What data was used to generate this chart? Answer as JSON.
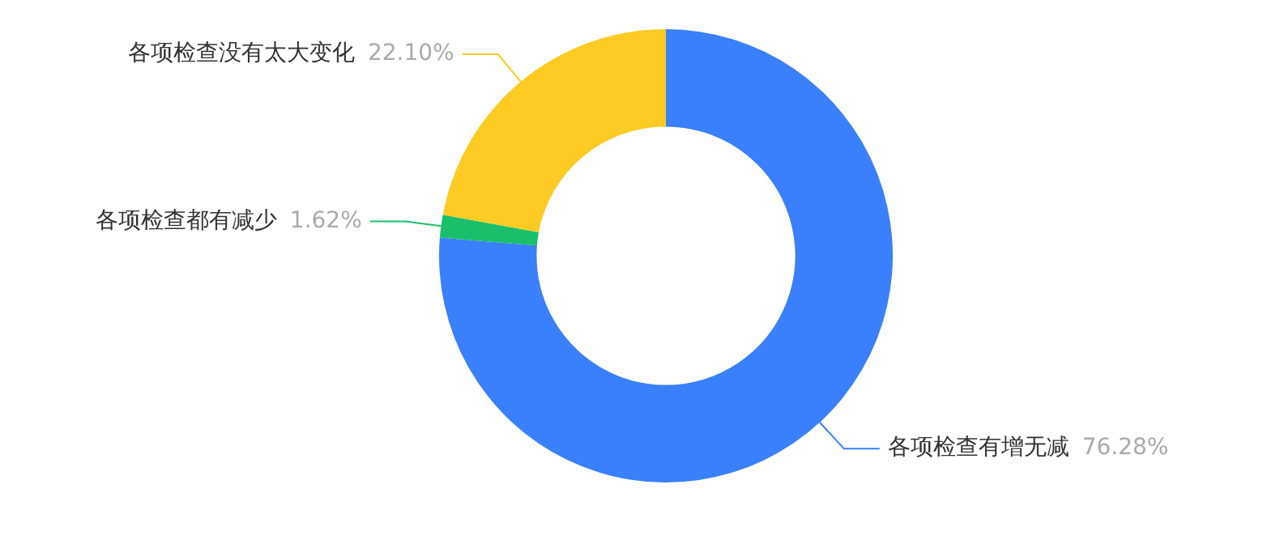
{
  "chart_data": {
    "type": "donut",
    "categories": [
      "各项检查有增无减",
      "各项检查都有减少",
      "各项检查没有太大变化"
    ],
    "values": [
      76.28,
      1.62,
      22.1
    ],
    "colors": [
      "#3a7ffc",
      "#19bf6b",
      "#fdcb24"
    ],
    "value_labels": [
      "76.28%",
      "1.62%",
      "22.10%"
    ],
    "legend": false
  }
}
